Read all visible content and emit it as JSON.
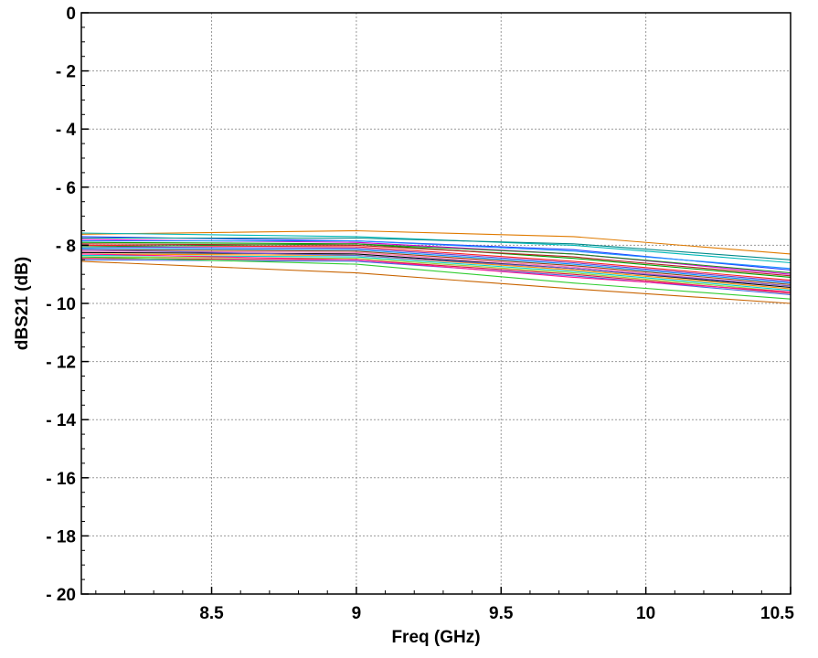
{
  "chart_data": {
    "type": "line",
    "title": "",
    "xlabel": "Freq (GHz)",
    "ylabel": "dBS21 (dB)",
    "xlim": [
      8.05,
      10.5
    ],
    "ylim": [
      -20,
      0
    ],
    "x_ticks": [
      8.5,
      9,
      9.5,
      10,
      10.5
    ],
    "x_tick_labels": [
      "8.5",
      "9",
      "9.5",
      "10",
      "10.5"
    ],
    "y_ticks": [
      0,
      -2,
      -4,
      -6,
      -8,
      -10,
      -12,
      -14,
      -16,
      -18,
      -20
    ],
    "y_tick_labels": [
      "0",
      "- 2",
      "- 4",
      "- 6",
      "- 8",
      "- 10",
      "- 12",
      "- 14",
      "- 16",
      "- 18",
      "- 20"
    ],
    "grid": true,
    "legend": "none",
    "x": [
      8.05,
      9,
      9.75,
      10.5
    ],
    "series": [
      {
        "color": "#e07b00",
        "values": [
          -7.62,
          -7.5,
          -7.7,
          -8.3
        ]
      },
      {
        "color": "#00b8b8",
        "values": [
          -7.58,
          -7.7,
          -8.0,
          -8.6
        ]
      },
      {
        "color": "#1f3fff",
        "values": [
          -7.7,
          -7.85,
          -8.15,
          -8.85
        ]
      },
      {
        "color": "#d200d2",
        "values": [
          -7.8,
          -7.9,
          -8.3,
          -9.0
        ]
      },
      {
        "color": "#00a000",
        "values": [
          -7.9,
          -7.95,
          -8.45,
          -9.1
        ]
      },
      {
        "color": "#ff2020",
        "values": [
          -8.0,
          -8.05,
          -8.55,
          -9.2
        ]
      },
      {
        "color": "#7a3cc8",
        "values": [
          -8.05,
          -8.1,
          -8.6,
          -9.25
        ]
      },
      {
        "color": "#0090ff",
        "values": [
          -8.1,
          -8.15,
          -8.65,
          -9.3
        ]
      },
      {
        "color": "#8b4513",
        "values": [
          -8.15,
          -8.2,
          -8.7,
          -9.35
        ]
      },
      {
        "color": "#ff69b4",
        "values": [
          -8.2,
          -8.25,
          -8.75,
          -9.4
        ]
      },
      {
        "color": "#000000",
        "values": [
          -8.25,
          -8.3,
          -8.8,
          -9.45
        ]
      },
      {
        "color": "#ff8c00",
        "values": [
          -8.3,
          -8.35,
          -8.85,
          -9.5
        ]
      },
      {
        "color": "#00ced1",
        "values": [
          -8.35,
          -8.4,
          -8.9,
          -9.55
        ]
      },
      {
        "color": "#9acd32",
        "values": [
          -8.4,
          -8.45,
          -8.95,
          -9.6
        ]
      },
      {
        "color": "#dc143c",
        "values": [
          -8.45,
          -8.5,
          -9.0,
          -9.65
        ]
      },
      {
        "color": "#4169e1",
        "values": [
          -8.5,
          -8.55,
          -9.05,
          -9.7
        ]
      },
      {
        "color": "#32cd32",
        "values": [
          -8.4,
          -8.65,
          -9.3,
          -9.85
        ]
      },
      {
        "color": "#c86400",
        "values": [
          -8.55,
          -8.95,
          -9.5,
          -10.0
        ]
      },
      {
        "color": "#008b8b",
        "values": [
          -7.75,
          -7.75,
          -7.95,
          -8.5
        ]
      },
      {
        "color": "#b22222",
        "values": [
          -7.95,
          -8.0,
          -8.4,
          -9.05
        ]
      },
      {
        "color": "#6a5acd",
        "values": [
          -8.15,
          -8.35,
          -8.8,
          -9.4
        ]
      },
      {
        "color": "#ff1493",
        "values": [
          -8.3,
          -8.5,
          -9.1,
          -9.6
        ]
      },
      {
        "color": "#228b22",
        "values": [
          -8.05,
          -7.95,
          -8.3,
          -8.95
        ]
      },
      {
        "color": "#1e90ff",
        "values": [
          -7.85,
          -7.85,
          -8.2,
          -8.8
        ]
      }
    ]
  }
}
